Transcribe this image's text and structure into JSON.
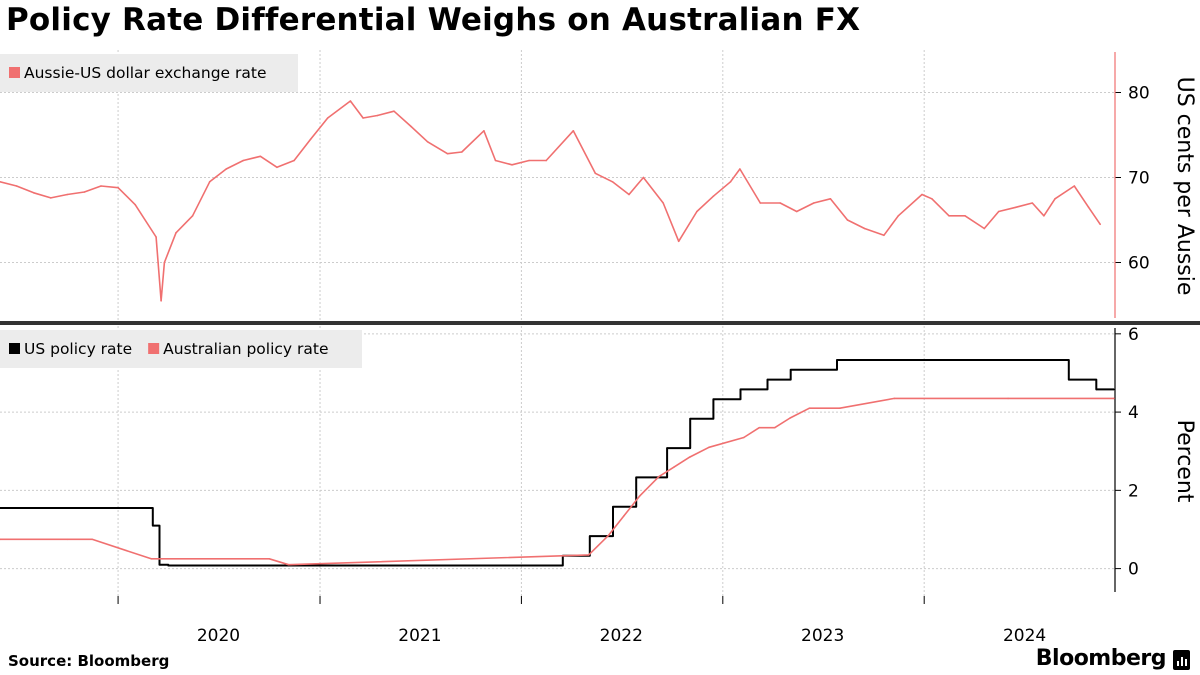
{
  "title": "Policy Rate Differential Weighs on Australian FX",
  "source": "Source: Bloomberg",
  "brand": "Bloomberg",
  "colors": {
    "aussie": "#f07070",
    "us": "#000000",
    "grid": "#cccccc"
  },
  "x_axis": {
    "tick_labels": [
      "2020",
      "2021",
      "2022",
      "2023",
      "2024"
    ]
  },
  "chart_data": [
    {
      "type": "line",
      "title": "",
      "ylabel": "US cents per Aussie",
      "ylim": [
        53,
        85
      ],
      "yticks": [
        60,
        70,
        80
      ],
      "grid": true,
      "legend": "top-left",
      "series": [
        {
          "name": "Aussie-US dollar exchange rate",
          "color": "#f07070",
          "x": [
            "2019-06-01",
            "2019-07-01",
            "2019-08-01",
            "2019-09-01",
            "2019-10-01",
            "2019-11-01",
            "2019-12-01",
            "2020-01-01",
            "2020-02-01",
            "2020-03-10",
            "2020-03-19",
            "2020-03-25",
            "2020-04-15",
            "2020-05-15",
            "2020-06-15",
            "2020-07-15",
            "2020-08-15",
            "2020-09-15",
            "2020-10-15",
            "2020-11-15",
            "2020-12-15",
            "2021-01-15",
            "2021-02-25",
            "2021-03-20",
            "2021-04-15",
            "2021-05-15",
            "2021-06-15",
            "2021-07-15",
            "2021-08-20",
            "2021-09-15",
            "2021-10-25",
            "2021-11-15",
            "2021-12-15",
            "2022-01-15",
            "2022-02-15",
            "2022-04-05",
            "2022-05-15",
            "2022-06-15",
            "2022-07-15",
            "2022-08-10",
            "2022-09-15",
            "2022-10-13",
            "2022-11-15",
            "2022-12-15",
            "2023-01-15",
            "2023-02-01",
            "2023-03-10",
            "2023-04-15",
            "2023-05-15",
            "2023-06-15",
            "2023-07-15",
            "2023-08-15",
            "2023-09-15",
            "2023-10-20",
            "2023-11-15",
            "2023-12-28",
            "2024-01-15",
            "2024-02-15",
            "2024-03-15",
            "2024-04-19",
            "2024-05-15",
            "2024-06-15",
            "2024-07-15",
            "2024-08-05",
            "2024-08-25",
            "2024-09-29",
            "2024-10-25",
            "2024-11-15"
          ],
          "values": [
            69.5,
            69,
            68.2,
            67.6,
            68,
            68.3,
            69,
            68.8,
            66.8,
            63,
            55.5,
            60,
            63.5,
            65.5,
            69.5,
            71,
            72,
            72.5,
            71.2,
            72,
            74.5,
            77,
            79,
            77,
            77.3,
            77.8,
            76,
            74.2,
            72.8,
            73,
            75.5,
            72,
            71.5,
            72,
            72,
            75.5,
            70.5,
            69.5,
            68,
            70,
            67,
            62.5,
            66,
            67.8,
            69.5,
            71,
            67,
            67,
            66,
            67,
            67.5,
            65,
            64,
            63.2,
            65.5,
            68,
            67.5,
            65.5,
            65.5,
            64,
            66,
            66.5,
            67,
            65.5,
            67.5,
            69,
            66.5,
            64.5
          ]
        }
      ]
    },
    {
      "type": "line",
      "title": "",
      "ylabel": "Percent",
      "ylim": [
        -0.7,
        6.2
      ],
      "yticks": [
        0,
        2,
        4,
        6
      ],
      "grid": true,
      "legend": "top-left",
      "series": [
        {
          "name": "US policy rate",
          "color": "#000000",
          "step": true,
          "x": [
            "2019-06-01",
            "2019-08-01",
            "2019-09-19",
            "2019-10-31",
            "2020-03-04",
            "2020-03-16",
            "2020-04-01",
            "2022-03-17",
            "2022-05-05",
            "2022-06-16",
            "2022-07-28",
            "2022-09-22",
            "2022-11-03",
            "2022-12-15",
            "2023-02-02",
            "2023-03-23",
            "2023-05-04",
            "2023-07-27",
            "2024-09-19",
            "2024-11-08",
            "2024-12-10"
          ],
          "values": [
            1.55,
            1.55,
            1.55,
            1.55,
            1.1,
            0.1,
            0.08,
            0.33,
            0.83,
            1.58,
            2.33,
            3.08,
            3.83,
            4.33,
            4.58,
            4.83,
            5.08,
            5.33,
            4.83,
            4.58,
            4.58
          ]
        },
        {
          "name": "Australian policy rate",
          "color": "#f07070",
          "x": [
            "2019-06-01",
            "2019-10-01",
            "2019-11-15",
            "2020-03-01",
            "2020-10-01",
            "2020-11-05",
            "2022-05-03",
            "2022-06-08",
            "2022-07-06",
            "2022-08-03",
            "2022-09-07",
            "2022-10-05",
            "2022-11-02",
            "2022-12-07",
            "2023-02-08",
            "2023-03-08",
            "2023-04-05",
            "2023-05-03",
            "2023-06-07",
            "2023-08-01",
            "2023-11-08",
            "2024-06-01",
            "2024-12-10"
          ],
          "values": [
            0.75,
            0.75,
            0.75,
            0.25,
            0.25,
            0.1,
            0.35,
            0.85,
            1.35,
            1.85,
            2.35,
            2.6,
            2.85,
            3.1,
            3.35,
            3.6,
            3.6,
            3.85,
            4.1,
            4.1,
            4.35,
            4.35,
            4.35
          ]
        }
      ]
    }
  ]
}
